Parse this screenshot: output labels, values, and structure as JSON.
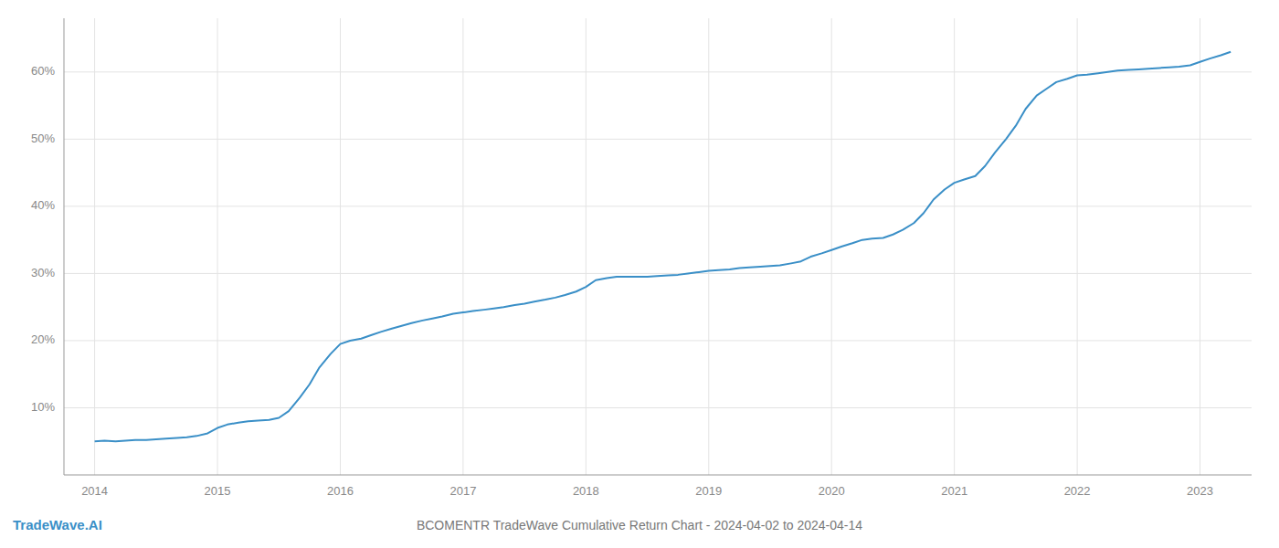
{
  "chart_data": {
    "type": "line",
    "title": "BCOMENTR TradeWave Cumulative Return Chart - 2024-04-02 to 2024-04-14",
    "annotations": [
      "TradeWave.AI"
    ],
    "color": "#3a8fc7",
    "x": [
      2014.0,
      2014.08,
      2014.17,
      2014.25,
      2014.33,
      2014.42,
      2014.5,
      2014.58,
      2014.67,
      2014.75,
      2014.83,
      2014.92,
      2015.0,
      2015.08,
      2015.17,
      2015.25,
      2015.33,
      2015.42,
      2015.5,
      2015.58,
      2015.67,
      2015.75,
      2015.83,
      2015.92,
      2016.0,
      2016.08,
      2016.17,
      2016.25,
      2016.33,
      2016.42,
      2016.5,
      2016.58,
      2016.67,
      2016.75,
      2016.83,
      2016.92,
      2017.0,
      2017.08,
      2017.17,
      2017.25,
      2017.33,
      2017.42,
      2017.5,
      2017.58,
      2017.67,
      2017.75,
      2017.83,
      2017.92,
      2018.0,
      2018.08,
      2018.17,
      2018.25,
      2018.33,
      2018.42,
      2018.5,
      2018.58,
      2018.67,
      2018.75,
      2018.83,
      2018.92,
      2019.0,
      2019.08,
      2019.17,
      2019.25,
      2019.33,
      2019.42,
      2019.5,
      2019.58,
      2019.67,
      2019.75,
      2019.83,
      2019.92,
      2020.0,
      2020.08,
      2020.17,
      2020.25,
      2020.33,
      2020.42,
      2020.5,
      2020.58,
      2020.67,
      2020.75,
      2020.83,
      2020.92,
      2021.0,
      2021.08,
      2021.17,
      2021.25,
      2021.33,
      2021.42,
      2021.5,
      2021.58,
      2021.67,
      2021.75,
      2021.83,
      2021.92,
      2022.0,
      2022.08,
      2022.17,
      2022.25,
      2022.33,
      2022.42,
      2022.5,
      2022.58,
      2022.67,
      2022.75,
      2022.83,
      2022.92,
      2023.0,
      2023.08,
      2023.17,
      2023.25
    ],
    "values": [
      5.0,
      5.1,
      5.0,
      5.1,
      5.2,
      5.2,
      5.3,
      5.4,
      5.5,
      5.6,
      5.8,
      6.2,
      7.0,
      7.5,
      7.8,
      8.0,
      8.1,
      8.2,
      8.5,
      9.5,
      11.5,
      13.5,
      16.0,
      18.0,
      19.5,
      20.0,
      20.3,
      20.8,
      21.3,
      21.8,
      22.2,
      22.6,
      23.0,
      23.3,
      23.6,
      24.0,
      24.2,
      24.4,
      24.6,
      24.8,
      25.0,
      25.3,
      25.5,
      25.8,
      26.1,
      26.4,
      26.8,
      27.3,
      28.0,
      29.0,
      29.3,
      29.5,
      29.5,
      29.5,
      29.5,
      29.6,
      29.7,
      29.8,
      30.0,
      30.2,
      30.4,
      30.5,
      30.6,
      30.8,
      30.9,
      31.0,
      31.1,
      31.2,
      31.5,
      31.8,
      32.5,
      33.0,
      33.5,
      34.0,
      34.5,
      35.0,
      35.2,
      35.3,
      35.8,
      36.5,
      37.5,
      39.0,
      41.0,
      42.5,
      43.5,
      44.0,
      44.5,
      46.0,
      48.0,
      50.0,
      52.0,
      54.5,
      56.5,
      57.5,
      58.5,
      59.0,
      59.5,
      59.6,
      59.8,
      60.0,
      60.2,
      60.3,
      60.4,
      60.5,
      60.6,
      60.7,
      60.8,
      61.0,
      61.5,
      62.0,
      62.5,
      63.0
    ],
    "xlim": [
      2013.75,
      2023.42
    ],
    "ylim": [
      0,
      68
    ],
    "xticks": [
      2014,
      2015,
      2016,
      2017,
      2018,
      2019,
      2020,
      2021,
      2022,
      2023
    ],
    "yticks": [
      {
        "value": 10,
        "label": "10%"
      },
      {
        "value": 20,
        "label": "20%"
      },
      {
        "value": 30,
        "label": "30%"
      },
      {
        "value": 40,
        "label": "40%"
      },
      {
        "value": 50,
        "label": "50%"
      },
      {
        "value": 60,
        "label": "60%"
      }
    ],
    "grid": true
  }
}
